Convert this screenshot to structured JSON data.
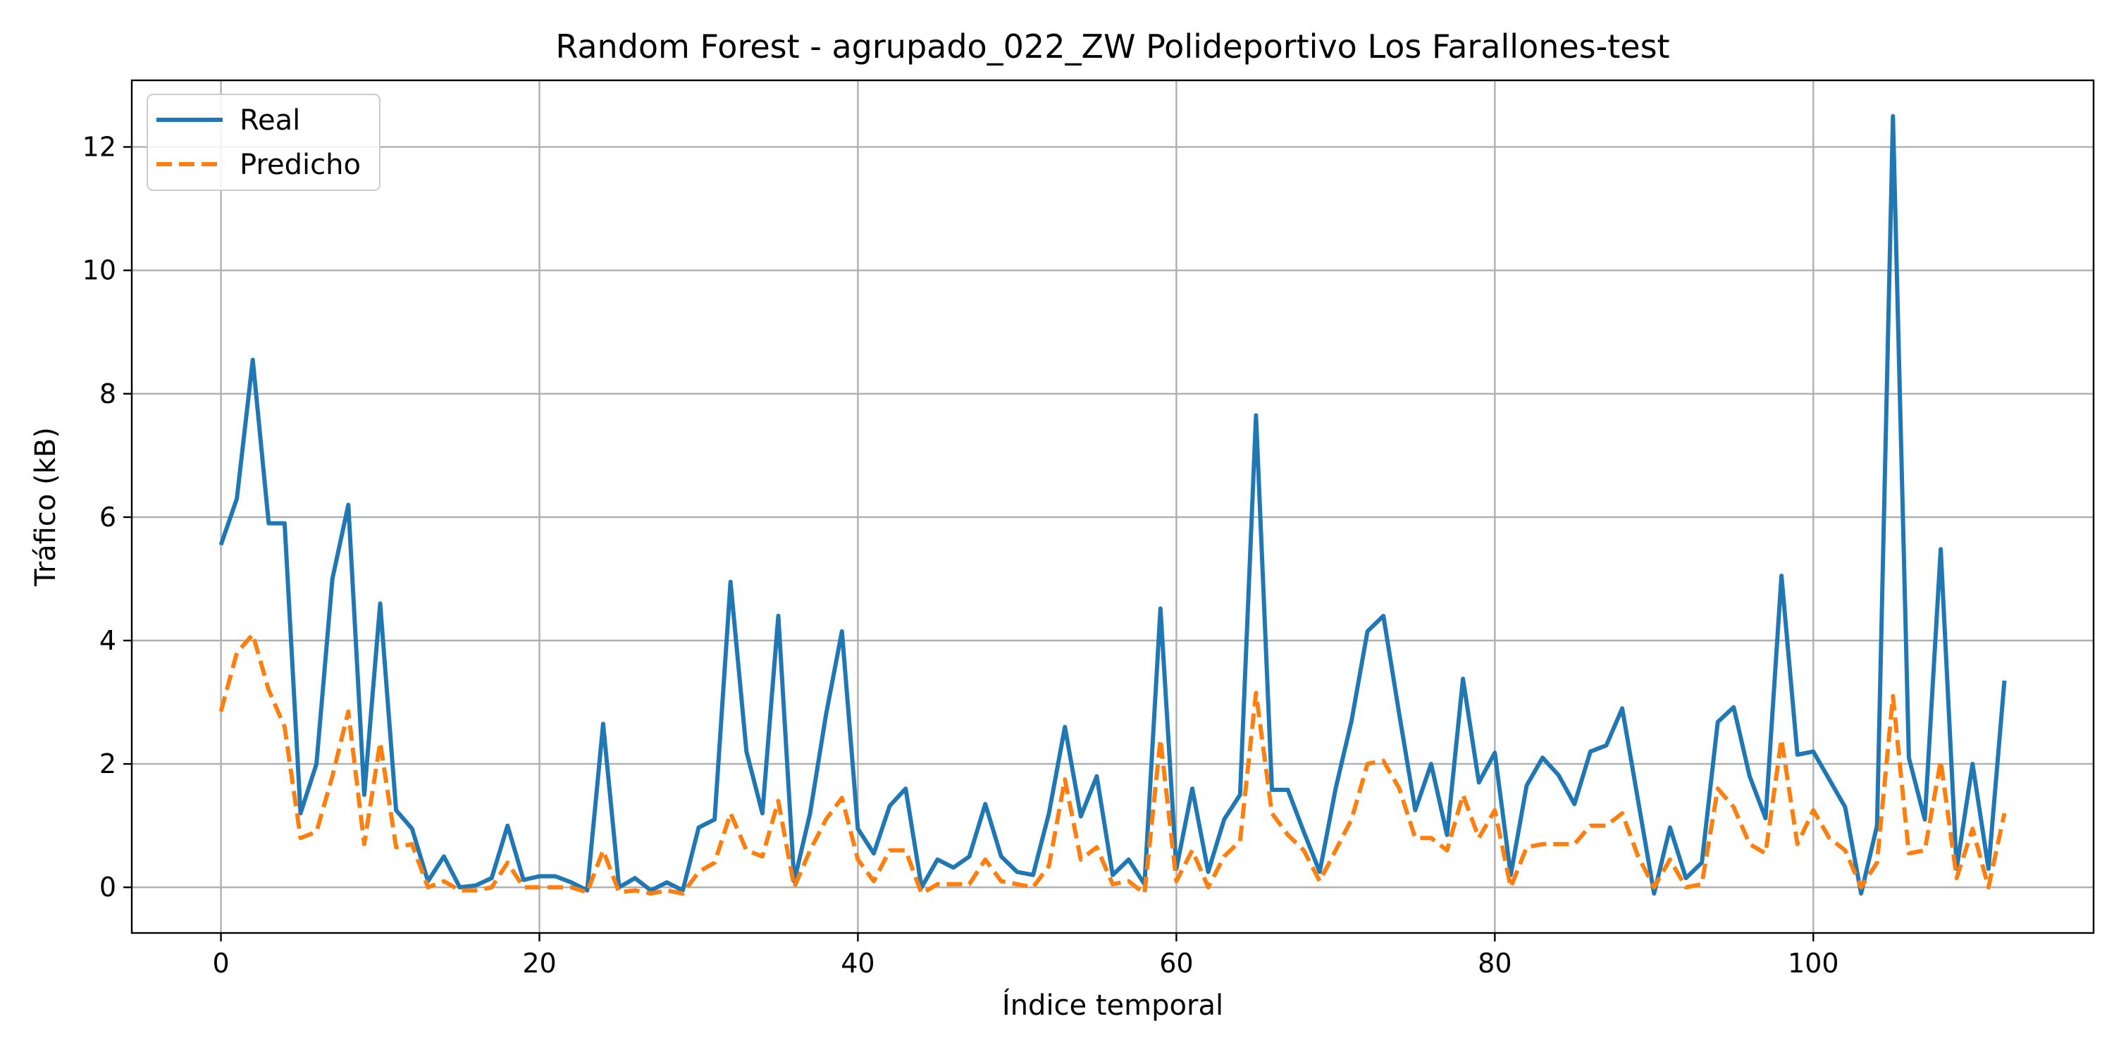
{
  "chart_data": {
    "type": "line",
    "title": "Random Forest - agrupado_022_ZW Polideportivo Los Farallones-test",
    "xlabel": "Índice temporal",
    "ylabel": "Tráfico (kB)",
    "xlim": [
      -5.6,
      117.6
    ],
    "ylim": [
      -0.74,
      13.08
    ],
    "xticks": [
      0,
      20,
      40,
      60,
      80,
      100
    ],
    "yticks": [
      0,
      2,
      4,
      6,
      8,
      10,
      12
    ],
    "grid": true,
    "legend_position": "top-left",
    "series": [
      {
        "name": "Real",
        "color": "#1f77b4",
        "style": "solid",
        "x": [
          0,
          1,
          2,
          3,
          4,
          5,
          6,
          7,
          8,
          9,
          10,
          11,
          12,
          13,
          14,
          15,
          16,
          17,
          18,
          19,
          20,
          21,
          22,
          23,
          24,
          25,
          26,
          27,
          28,
          29,
          30,
          31,
          32,
          33,
          34,
          35,
          36,
          37,
          38,
          39,
          40,
          41,
          42,
          43,
          44,
          45,
          46,
          47,
          48,
          49,
          50,
          51,
          52,
          53,
          54,
          55,
          56,
          57,
          58,
          59,
          60,
          61,
          62,
          63,
          64,
          65,
          66,
          67,
          68,
          69,
          70,
          71,
          72,
          73,
          74,
          75,
          76,
          77,
          78,
          79,
          80,
          81,
          82,
          83,
          84,
          85,
          86,
          87,
          88,
          89,
          90,
          91,
          92,
          93,
          94,
          95,
          96,
          97,
          98,
          99,
          100,
          101,
          102,
          103,
          104,
          105,
          106,
          107,
          108,
          109,
          110,
          111,
          112
        ],
        "values": [
          5.55,
          6.3,
          8.55,
          5.9,
          5.9,
          1.2,
          2.0,
          5.0,
          6.2,
          1.5,
          4.6,
          1.25,
          0.95,
          0.1,
          0.5,
          0.0,
          0.03,
          0.15,
          1.0,
          0.12,
          0.18,
          0.18,
          0.08,
          -0.05,
          2.65,
          0.0,
          0.15,
          -0.05,
          0.08,
          -0.05,
          0.97,
          1.1,
          4.95,
          2.2,
          1.2,
          4.4,
          0.1,
          1.2,
          2.8,
          4.15,
          0.95,
          0.55,
          1.32,
          1.6,
          0.0,
          0.45,
          0.32,
          0.5,
          1.35,
          0.5,
          0.25,
          0.2,
          1.2,
          2.6,
          1.15,
          1.8,
          0.2,
          0.45,
          0.05,
          4.52,
          0.3,
          1.6,
          0.25,
          1.1,
          1.5,
          7.65,
          1.58,
          1.58,
          0.9,
          0.25,
          1.6,
          2.7,
          4.15,
          4.4,
          2.8,
          1.25,
          2.0,
          0.85,
          3.38,
          1.7,
          2.18,
          0.2,
          1.65,
          2.1,
          1.82,
          1.35,
          2.2,
          2.3,
          2.9,
          1.4,
          -0.1,
          0.97,
          0.15,
          0.4,
          2.68,
          2.92,
          1.8,
          1.12,
          5.05,
          2.15,
          2.2,
          1.75,
          1.3,
          -0.1,
          1.0,
          12.5,
          2.1,
          1.1,
          5.48,
          0.3,
          2.0,
          0.3,
          3.35
        ]
      },
      {
        "name": "Predicho",
        "color": "#ff7f0e",
        "style": "dashed",
        "x": [
          0,
          1,
          2,
          3,
          4,
          5,
          6,
          7,
          8,
          9,
          10,
          11,
          12,
          13,
          14,
          15,
          16,
          17,
          18,
          19,
          20,
          21,
          22,
          23,
          24,
          25,
          26,
          27,
          28,
          29,
          30,
          31,
          32,
          33,
          34,
          35,
          36,
          37,
          38,
          39,
          40,
          41,
          42,
          43,
          44,
          45,
          46,
          47,
          48,
          49,
          50,
          51,
          52,
          53,
          54,
          55,
          56,
          57,
          58,
          59,
          60,
          61,
          62,
          63,
          64,
          65,
          66,
          67,
          68,
          69,
          70,
          71,
          72,
          73,
          74,
          75,
          76,
          77,
          78,
          79,
          80,
          81,
          82,
          83,
          84,
          85,
          86,
          87,
          88,
          89,
          90,
          91,
          92,
          93,
          94,
          95,
          96,
          97,
          98,
          99,
          100,
          101,
          102,
          103,
          104,
          105,
          106,
          107,
          108,
          109,
          110,
          111,
          112
        ],
        "values": [
          2.85,
          3.8,
          4.1,
          3.2,
          2.6,
          0.8,
          0.9,
          1.8,
          2.85,
          0.7,
          2.35,
          0.65,
          0.7,
          0.0,
          0.1,
          -0.05,
          -0.05,
          0.0,
          0.4,
          0.0,
          0.0,
          0.0,
          0.0,
          -0.08,
          0.6,
          -0.08,
          -0.05,
          -0.1,
          -0.05,
          -0.1,
          0.25,
          0.4,
          1.2,
          0.6,
          0.5,
          1.4,
          0.0,
          0.6,
          1.1,
          1.45,
          0.45,
          0.1,
          0.6,
          0.6,
          -0.1,
          0.05,
          0.05,
          0.05,
          0.45,
          0.1,
          0.05,
          0.0,
          0.35,
          1.75,
          0.45,
          0.65,
          0.05,
          0.1,
          -0.1,
          2.4,
          0.1,
          0.6,
          0.0,
          0.5,
          0.75,
          3.15,
          1.2,
          0.85,
          0.6,
          0.1,
          0.6,
          1.1,
          2.0,
          2.05,
          1.6,
          0.8,
          0.8,
          0.6,
          1.5,
          0.8,
          1.25,
          0.0,
          0.65,
          0.7,
          0.7,
          0.7,
          1.0,
          1.0,
          1.2,
          0.5,
          0.0,
          0.45,
          0.0,
          0.05,
          1.6,
          1.3,
          0.7,
          0.55,
          2.4,
          0.7,
          1.25,
          0.8,
          0.6,
          0.0,
          0.4,
          3.1,
          0.55,
          0.6,
          2.05,
          0.15,
          0.95,
          0.0,
          1.2
        ]
      }
    ]
  }
}
